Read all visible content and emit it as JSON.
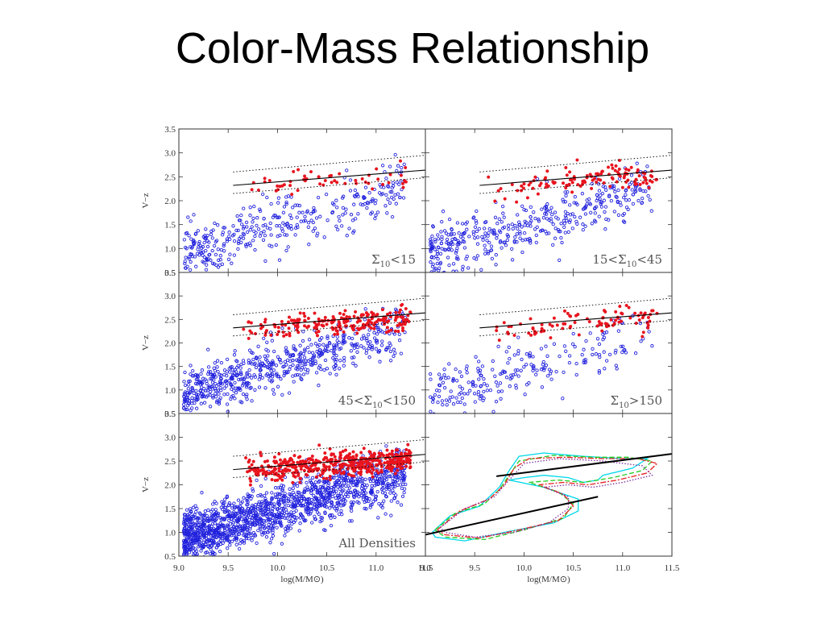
{
  "slide": {
    "title": "Color-Mass Relationship"
  },
  "colors": {
    "blue_points": "#2222dd",
    "red_points": "#e8141e",
    "fit_line": "#000000",
    "contour_cyan": "#00d8e8",
    "contour_green": "#22cc22",
    "contour_red": "#e82020",
    "contour_purple": "#8030a0"
  },
  "chart_data": [
    {
      "type": "scatter",
      "panel": "top-left",
      "label": "Σ10<15",
      "label_parts": {
        "prefix": "",
        "sub": "10",
        "suffix": "<15",
        "before": ""
      },
      "ylabel": "V−z",
      "xlabel": "",
      "xlim": [
        9.0,
        11.5
      ],
      "ylim": [
        0.5,
        3.5
      ],
      "yticks": [
        "3.5",
        "3.0",
        "2.5",
        "2.0",
        "1.5",
        "1.0",
        "0.5"
      ],
      "xticks": [],
      "n_blue": 360,
      "n_red": 55,
      "fit_line": {
        "x": [
          9.55,
          11.5
        ],
        "y": [
          2.32,
          2.64
        ]
      },
      "fit_band": {
        "upper": [
          2.6,
          2.95
        ],
        "lower": [
          2.15,
          2.48
        ]
      }
    },
    {
      "type": "scatter",
      "panel": "top-right",
      "label": "15<Σ10<45",
      "label_parts": {
        "before": "15<",
        "sub": "10",
        "suffix": "<45"
      },
      "ylabel": "",
      "xlabel": "",
      "xlim": [
        9.0,
        11.5
      ],
      "ylim": [
        0.5,
        3.5
      ],
      "yticks": [],
      "xticks": [],
      "n_blue": 420,
      "n_red": 120,
      "fit_line": {
        "x": [
          9.55,
          11.5
        ],
        "y": [
          2.32,
          2.64
        ]
      },
      "fit_band": {
        "upper": [
          2.6,
          2.95
        ],
        "lower": [
          2.15,
          2.48
        ]
      }
    },
    {
      "type": "scatter",
      "panel": "middle-left",
      "label": "45<Σ10<150",
      "label_parts": {
        "before": "45<",
        "sub": "10",
        "suffix": "<150"
      },
      "ylabel": "V−z",
      "xlabel": "",
      "xlim": [
        9.0,
        11.5
      ],
      "ylim": [
        0.5,
        3.5
      ],
      "yticks": [
        "3.5",
        "3.0",
        "2.5",
        "2.0",
        "1.5",
        "1.0",
        "0.5"
      ],
      "xticks": [],
      "n_blue": 620,
      "n_red": 220,
      "fit_line": {
        "x": [
          9.55,
          11.5
        ],
        "y": [
          2.32,
          2.64
        ]
      },
      "fit_band": {
        "upper": [
          2.6,
          2.95
        ],
        "lower": [
          2.15,
          2.48
        ]
      }
    },
    {
      "type": "scatter",
      "panel": "middle-right",
      "label": "Σ10>150",
      "label_parts": {
        "before": "",
        "sub": "10",
        "suffix": ">150"
      },
      "ylabel": "",
      "xlabel": "",
      "xlim": [
        9.0,
        11.5
      ],
      "ylim": [
        0.5,
        3.5
      ],
      "yticks": [],
      "xticks": [],
      "n_blue": 230,
      "n_red": 95,
      "fit_line": {
        "x": [
          9.55,
          11.5
        ],
        "y": [
          2.32,
          2.64
        ]
      },
      "fit_band": {
        "upper": [
          2.6,
          2.95
        ],
        "lower": [
          2.15,
          2.48
        ]
      }
    },
    {
      "type": "scatter",
      "panel": "bottom-left",
      "label": "All Densities",
      "label_parts": null,
      "ylabel": "V−z",
      "xlabel": "log(M/M⊙)",
      "xlim": [
        9.0,
        11.5
      ],
      "ylim": [
        0.5,
        3.5
      ],
      "yticks": [
        "3.5",
        "3.0",
        "2.5",
        "2.0",
        "1.5",
        "1.0",
        "0.5"
      ],
      "xticks": [
        "9.0",
        "9.5",
        "10.0",
        "10.5",
        "11.0",
        "11.5"
      ],
      "n_blue": 1500,
      "n_red": 480,
      "fit_line": {
        "x": [
          9.55,
          11.5
        ],
        "y": [
          2.32,
          2.64
        ]
      },
      "fit_band": {
        "upper": [
          2.6,
          2.95
        ],
        "lower": [
          2.15,
          2.48
        ]
      }
    },
    {
      "type": "contour",
      "panel": "bottom-right",
      "label": "",
      "ylabel": "",
      "xlabel": "log(M/M⊙)",
      "xlim": [
        9.0,
        11.5
      ],
      "ylim": [
        0.5,
        3.5
      ],
      "yticks": [],
      "xticks": [
        "9.0",
        "9.5",
        "10.0",
        "10.5",
        "11.0",
        "11.5"
      ],
      "lines": [
        {
          "x": [
            9.72,
            11.5
          ],
          "y": [
            2.18,
            2.65
          ]
        },
        {
          "x": [
            9.0,
            10.75
          ],
          "y": [
            0.95,
            1.75
          ]
        }
      ],
      "contours": {
        "cyan": [
          [
            9.07,
            1.0
          ],
          [
            9.25,
            1.35
          ],
          [
            9.55,
            1.55
          ],
          [
            9.75,
            1.95
          ],
          [
            9.85,
            2.3
          ],
          [
            9.95,
            2.6
          ],
          [
            10.2,
            2.67
          ],
          [
            10.6,
            2.6
          ],
          [
            11.0,
            2.55
          ],
          [
            11.25,
            2.55
          ],
          [
            11.1,
            2.35
          ],
          [
            10.8,
            2.2
          ],
          [
            10.75,
            2.1
          ],
          [
            10.6,
            2.05
          ],
          [
            10.45,
            2.15
          ],
          [
            10.2,
            2.2
          ],
          [
            10.0,
            2.15
          ],
          [
            9.85,
            2.1
          ],
          [
            10.2,
            1.95
          ],
          [
            10.55,
            1.7
          ],
          [
            10.55,
            1.45
          ],
          [
            10.3,
            1.2
          ],
          [
            9.8,
            1.0
          ],
          [
            9.4,
            0.82
          ],
          [
            9.1,
            0.9
          ],
          [
            9.07,
            1.0
          ]
        ],
        "green": [
          [
            9.1,
            1.05
          ],
          [
            9.3,
            1.4
          ],
          [
            9.6,
            1.6
          ],
          [
            9.75,
            1.9
          ],
          [
            9.85,
            2.2
          ],
          [
            9.95,
            2.5
          ],
          [
            10.3,
            2.62
          ],
          [
            10.7,
            2.58
          ],
          [
            11.05,
            2.58
          ],
          [
            11.3,
            2.5
          ],
          [
            11.2,
            2.3
          ],
          [
            10.9,
            2.15
          ],
          [
            10.6,
            2.05
          ],
          [
            10.35,
            2.1
          ],
          [
            10.05,
            2.05
          ],
          [
            10.35,
            1.85
          ],
          [
            10.5,
            1.6
          ],
          [
            10.4,
            1.3
          ],
          [
            10.0,
            1.05
          ],
          [
            9.6,
            0.85
          ],
          [
            9.2,
            0.9
          ],
          [
            9.1,
            1.05
          ]
        ],
        "red": [
          [
            9.12,
            1.05
          ],
          [
            9.35,
            1.45
          ],
          [
            9.65,
            1.7
          ],
          [
            9.8,
            2.0
          ],
          [
            9.9,
            2.35
          ],
          [
            10.05,
            2.55
          ],
          [
            10.4,
            2.58
          ],
          [
            10.8,
            2.55
          ],
          [
            11.15,
            2.55
          ],
          [
            11.35,
            2.45
          ],
          [
            11.25,
            2.25
          ],
          [
            10.95,
            2.1
          ],
          [
            10.65,
            2.0
          ],
          [
            10.4,
            2.05
          ],
          [
            10.15,
            2.0
          ],
          [
            10.4,
            1.8
          ],
          [
            10.5,
            1.55
          ],
          [
            10.35,
            1.25
          ],
          [
            9.95,
            1.05
          ],
          [
            9.55,
            0.88
          ],
          [
            9.2,
            0.95
          ],
          [
            9.12,
            1.05
          ]
        ],
        "purple": [
          [
            9.15,
            1.1
          ],
          [
            9.4,
            1.5
          ],
          [
            9.7,
            1.75
          ],
          [
            9.85,
            2.1
          ],
          [
            10.0,
            2.45
          ],
          [
            10.35,
            2.55
          ],
          [
            10.8,
            2.5
          ],
          [
            11.2,
            2.4
          ],
          [
            11.3,
            2.2
          ],
          [
            11.0,
            2.05
          ],
          [
            10.7,
            1.95
          ],
          [
            10.45,
            2.0
          ],
          [
            10.2,
            1.95
          ],
          [
            10.45,
            1.75
          ],
          [
            10.45,
            1.5
          ],
          [
            10.25,
            1.2
          ],
          [
            9.9,
            1.0
          ],
          [
            9.5,
            0.9
          ],
          [
            9.2,
            1.0
          ],
          [
            9.15,
            1.1
          ]
        ]
      }
    }
  ]
}
